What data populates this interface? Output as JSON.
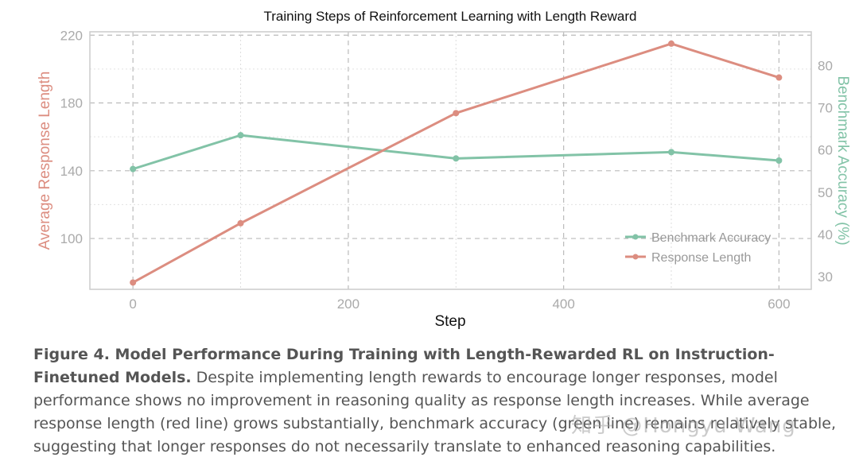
{
  "chart_data": {
    "type": "line",
    "title": "Training Steps of Reinforcement Learning with Length Reward",
    "xlabel": "Step",
    "ylabel_left": "Average Response Length",
    "ylabel_right": "Benchmark Accuracy (%)",
    "xlim": [
      -40,
      630
    ],
    "ylim_left": [
      70,
      222
    ],
    "ylim_right": [
      27,
      88
    ],
    "x_ticks": [
      0,
      200,
      400,
      600
    ],
    "y_ticks_left": [
      100,
      140,
      180,
      220
    ],
    "y_ticks_right": [
      30,
      40,
      50,
      60,
      70,
      80
    ],
    "grid": true,
    "legend_position": "lower-right",
    "series": [
      {
        "name": "Benchmark Accuracy",
        "axis": "right",
        "color": "#82c3a7",
        "x": [
          0,
          100,
          300,
          500,
          600
        ],
        "y": [
          55.5,
          63.5,
          58,
          59.5,
          57.5
        ]
      },
      {
        "name": "Response Length",
        "axis": "left",
        "color": "#dc8d80",
        "x": [
          0,
          100,
          300,
          500,
          600
        ],
        "y": [
          74,
          109,
          174,
          215,
          195
        ]
      }
    ]
  },
  "caption": {
    "bold": "Figure 4. Model Performance During Training with Length-Rewarded RL on Instruction-Finetuned Models.",
    "text": " Despite implementing length rewards to encourage longer responses, model performance shows no improvement in reasoning quality as response length increases. While average response length (red line) grows substantially, benchmark accuracy (green line) remains relatively stable, suggesting that longer responses do not necessarily translate to enhanced reasoning capabilities."
  },
  "watermark": "知乎 @Hongyu Wang"
}
